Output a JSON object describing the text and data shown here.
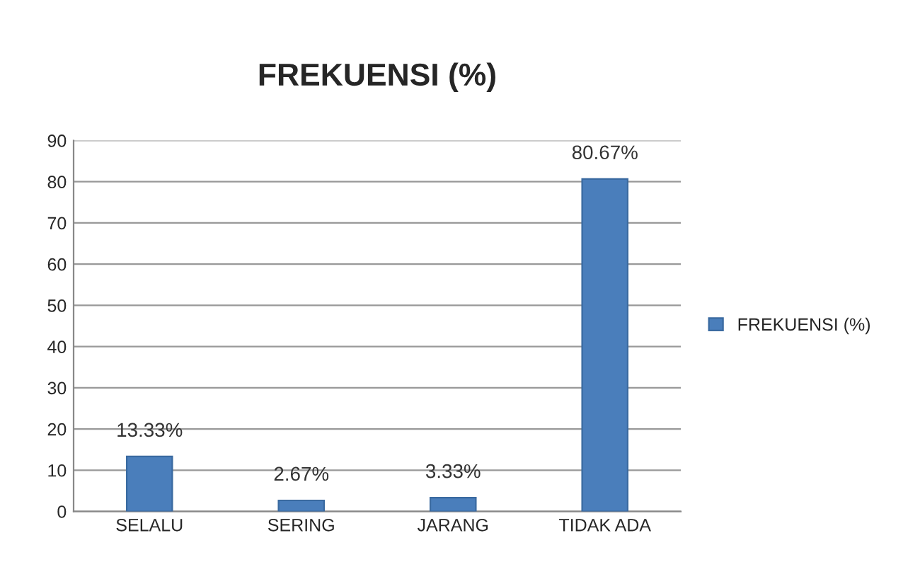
{
  "chart_data": {
    "type": "bar",
    "title": "FREKUENSI (%)",
    "categories": [
      "SELALU",
      "SERING",
      "JARANG",
      "TIDAK ADA"
    ],
    "series": [
      {
        "name": "FREKUENSI (%)",
        "color": "#4a7ebb",
        "values": [
          13.33,
          2.67,
          3.33,
          80.67
        ],
        "value_labels": [
          "13.33%",
          "2.67%",
          "3.33%",
          "80.67%"
        ]
      }
    ],
    "ylim": [
      0,
      90
    ],
    "yticks": [
      0,
      10,
      20,
      30,
      40,
      50,
      60,
      70,
      80,
      90
    ],
    "grid": "y",
    "legend": "right"
  }
}
